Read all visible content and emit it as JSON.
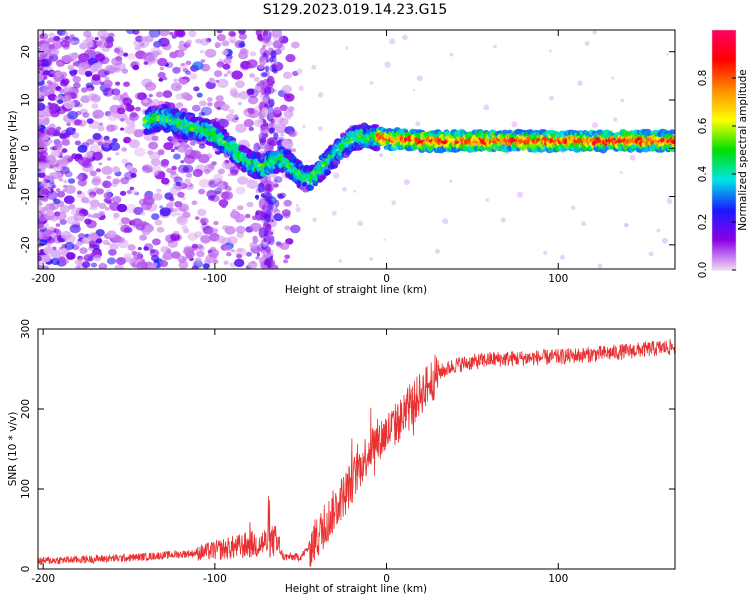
{
  "figure_title": "S129.2023.019.14.23.G15",
  "chart_data": [
    {
      "type": "heatmap",
      "name": "spectrogram",
      "xlabel": "Height of straight line (km)",
      "ylabel": "Frequency (Hz)",
      "xlim": [
        -203,
        168
      ],
      "ylim": [
        -25,
        24.5
      ],
      "xticks": [
        -200,
        -100,
        0,
        100
      ],
      "yticks": [
        20,
        10,
        0,
        -10,
        -20
      ],
      "ridge": {
        "x": [
          -140,
          -130,
          -120,
          -110,
          -100,
          -90,
          -80,
          -72,
          -62,
          -55,
          -48,
          -44,
          -40,
          -35,
          -30,
          -25,
          -20,
          -15,
          -10,
          -5,
          0,
          20,
          60,
          100,
          168
        ],
        "y": [
          5.5,
          6.5,
          5,
          4,
          3,
          0,
          -3,
          -4,
          -2,
          -4,
          -6,
          -6.5,
          -5,
          -3,
          -1,
          0.5,
          2,
          2.5,
          2,
          2.5,
          2,
          1.5,
          1.5,
          1.5,
          1.5
        ]
      },
      "colorbar": {
        "label": "Normalized spectral amplitude",
        "range": [
          0.0,
          1.0
        ],
        "ticks": [
          0.0,
          0.2,
          0.4,
          0.6,
          0.8
        ],
        "tick_labels": [
          "0.0",
          "0.2",
          "0.4",
          "0.6",
          "0.8"
        ],
        "colors": [
          "#f2d9f5",
          "#8a00e6",
          "#1a1aff",
          "#00e5e5",
          "#00e000",
          "#ffff00",
          "#ff8c00",
          "#ff0000",
          "#ff0066"
        ]
      }
    },
    {
      "type": "line",
      "name": "snr",
      "xlabel": "Height of straight line (km)",
      "ylabel": "SNR (10 * v/v)",
      "xlim": [
        -203,
        168
      ],
      "ylim": [
        0,
        300
      ],
      "xticks": [
        -200,
        -100,
        0,
        100
      ],
      "yticks": [
        0,
        100,
        200,
        300
      ],
      "color": "#e83030",
      "trend": {
        "x": [
          -203,
          -150,
          -110,
          -80,
          -65,
          -60,
          -50,
          -40,
          -30,
          -20,
          -10,
          0,
          10,
          20,
          30,
          40,
          60,
          100,
          130,
          168
        ],
        "y": [
          10,
          14,
          20,
          30,
          35,
          15,
          15,
          40,
          75,
          110,
          150,
          170,
          190,
          220,
          245,
          255,
          262,
          265,
          270,
          278
        ]
      }
    }
  ]
}
